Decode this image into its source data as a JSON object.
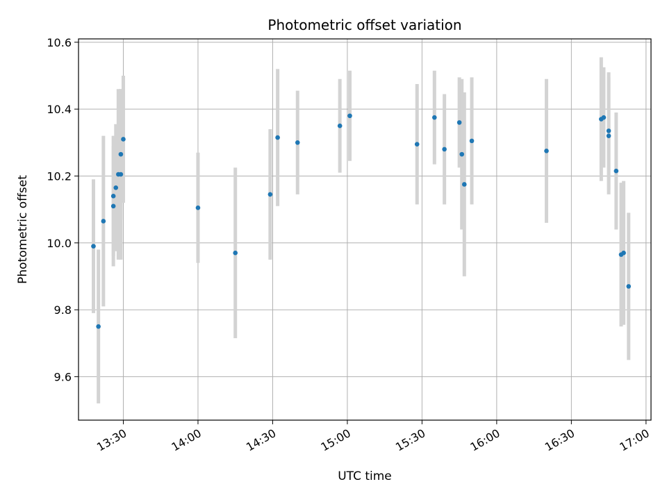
{
  "chart_data": {
    "type": "scatter",
    "title": "Photometric offset variation",
    "xlabel": "UTC time",
    "ylabel": "Photometric offset",
    "xlim": [
      "13:12",
      "17:02"
    ],
    "ylim": [
      9.47,
      10.61
    ],
    "x_ticks": [
      "13:30",
      "14:00",
      "14:30",
      "15:00",
      "15:30",
      "16:00",
      "16:30",
      "17:00"
    ],
    "y_ticks": [
      9.6,
      9.8,
      10.0,
      10.2,
      10.4,
      10.6
    ],
    "y_tick_labels": [
      "9.6",
      "9.8",
      "10.0",
      "10.2",
      "10.4",
      "10.6"
    ],
    "grid": true,
    "colors": {
      "point": "#1f77b4",
      "errorbar": "#d3d3d3",
      "grid": "#b0b0b0"
    },
    "points": [
      {
        "x": "13:18",
        "y": 9.99,
        "err": 0.2
      },
      {
        "x": "13:20",
        "y": 9.75,
        "err": 0.23
      },
      {
        "x": "13:22",
        "y": 10.065,
        "err": 0.255
      },
      {
        "x": "13:26",
        "y": 10.11,
        "err": 0.18
      },
      {
        "x": "13:26",
        "y": 10.14,
        "err": 0.18
      },
      {
        "x": "13:27",
        "y": 10.165,
        "err": 0.19
      },
      {
        "x": "13:28",
        "y": 10.205,
        "err": 0.255
      },
      {
        "x": "13:29",
        "y": 10.205,
        "err": 0.255
      },
      {
        "x": "13:29",
        "y": 10.265,
        "err": 0.195
      },
      {
        "x": "13:30",
        "y": 10.31,
        "err": 0.19
      },
      {
        "x": "14:00",
        "y": 10.105,
        "err": 0.165
      },
      {
        "x": "14:15",
        "y": 9.97,
        "err": 0.255
      },
      {
        "x": "14:29",
        "y": 10.145,
        "err": 0.195
      },
      {
        "x": "14:32",
        "y": 10.315,
        "err": 0.205
      },
      {
        "x": "14:40",
        "y": 10.3,
        "err": 0.155
      },
      {
        "x": "14:57",
        "y": 10.35,
        "err": 0.14
      },
      {
        "x": "15:01",
        "y": 10.38,
        "err": 0.135
      },
      {
        "x": "15:28",
        "y": 10.295,
        "err": 0.18
      },
      {
        "x": "15:35",
        "y": 10.375,
        "err": 0.14
      },
      {
        "x": "15:39",
        "y": 10.28,
        "err": 0.165
      },
      {
        "x": "15:45",
        "y": 10.36,
        "err": 0.135
      },
      {
        "x": "15:46",
        "y": 10.265,
        "err": 0.225
      },
      {
        "x": "15:47",
        "y": 10.175,
        "err": 0.275
      },
      {
        "x": "15:50",
        "y": 10.305,
        "err": 0.19
      },
      {
        "x": "16:20",
        "y": 10.275,
        "err": 0.215
      },
      {
        "x": "16:42",
        "y": 10.37,
        "err": 0.185
      },
      {
        "x": "16:43",
        "y": 10.375,
        "err": 0.15
      },
      {
        "x": "16:45",
        "y": 10.32,
        "err": 0.175
      },
      {
        "x": "16:45",
        "y": 10.335,
        "err": 0.175
      },
      {
        "x": "16:48",
        "y": 10.215,
        "err": 0.175
      },
      {
        "x": "16:50",
        "y": 9.965,
        "err": 0.215
      },
      {
        "x": "16:51",
        "y": 9.97,
        "err": 0.215
      },
      {
        "x": "16:53",
        "y": 9.87,
        "err": 0.22
      }
    ]
  }
}
